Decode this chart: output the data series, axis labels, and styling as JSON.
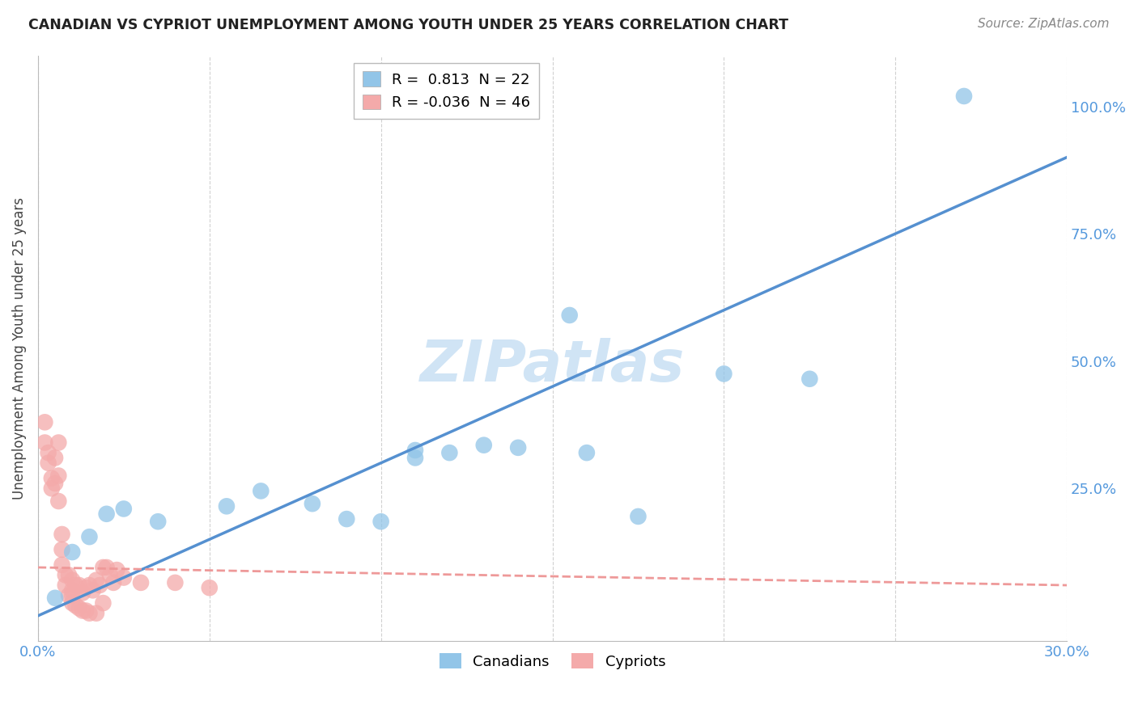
{
  "title": "CANADIAN VS CYPRIOT UNEMPLOYMENT AMONG YOUTH UNDER 25 YEARS CORRELATION CHART",
  "source": "Source: ZipAtlas.com",
  "ylabel": "Unemployment Among Youth under 25 years",
  "xlim": [
    0.0,
    0.3
  ],
  "ylim": [
    -0.05,
    1.1
  ],
  "canadians_R": 0.813,
  "canadians_N": 22,
  "cypriots_R": -0.036,
  "cypriots_N": 46,
  "canadian_color": "#92C5E8",
  "cypriot_color": "#F4AAAA",
  "canadian_line_color": "#5590D0",
  "cypriot_line_color": "#EE9999",
  "watermark": "ZIPatlas",
  "watermark_color": "#D0E4F5",
  "canadians_x": [
    0.005,
    0.01,
    0.015,
    0.02,
    0.025,
    0.035,
    0.055,
    0.065,
    0.08,
    0.09,
    0.1,
    0.11,
    0.11,
    0.12,
    0.13,
    0.14,
    0.155,
    0.16,
    0.175,
    0.2,
    0.225,
    0.27
  ],
  "canadians_y": [
    0.035,
    0.125,
    0.155,
    0.2,
    0.21,
    0.185,
    0.215,
    0.245,
    0.22,
    0.19,
    0.185,
    0.31,
    0.325,
    0.32,
    0.335,
    0.33,
    0.59,
    0.32,
    0.195,
    0.475,
    0.465,
    1.02
  ],
  "cypriots_x": [
    0.002,
    0.002,
    0.003,
    0.003,
    0.004,
    0.004,
    0.005,
    0.005,
    0.006,
    0.006,
    0.006,
    0.007,
    0.007,
    0.007,
    0.008,
    0.008,
    0.009,
    0.009,
    0.01,
    0.01,
    0.01,
    0.01,
    0.011,
    0.011,
    0.012,
    0.012,
    0.013,
    0.013,
    0.014,
    0.014,
    0.015,
    0.015,
    0.016,
    0.017,
    0.017,
    0.018,
    0.019,
    0.019,
    0.02,
    0.021,
    0.022,
    0.023,
    0.025,
    0.03,
    0.04,
    0.05
  ],
  "cypriots_y": [
    0.38,
    0.34,
    0.32,
    0.3,
    0.27,
    0.25,
    0.31,
    0.26,
    0.34,
    0.275,
    0.225,
    0.16,
    0.13,
    0.1,
    0.08,
    0.06,
    0.08,
    0.04,
    0.07,
    0.05,
    0.04,
    0.025,
    0.06,
    0.02,
    0.06,
    0.015,
    0.045,
    0.01,
    0.055,
    0.01,
    0.06,
    0.005,
    0.05,
    0.07,
    0.005,
    0.06,
    0.095,
    0.025,
    0.095,
    0.08,
    0.065,
    0.09,
    0.075,
    0.065,
    0.065,
    0.055
  ],
  "canadian_line_x": [
    0.0,
    0.3
  ],
  "canadian_line_y": [
    0.0,
    0.9
  ],
  "cypriot_line_x": [
    0.0,
    0.3
  ],
  "cypriot_line_y": [
    0.095,
    0.06
  ]
}
